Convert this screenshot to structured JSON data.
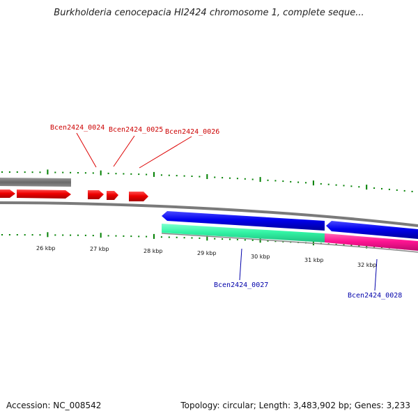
{
  "header": {
    "title": "Burkholderia cenocepacia HI2424 chromosome 1, complete seque..."
  },
  "footer": {
    "accession": "Accession: NC_008542",
    "summary": "Topology: circular; Length: 3,483,902 bp; Genes: 3,233"
  },
  "map": {
    "scale_labels": [
      "26 kbp",
      "27 kbp",
      "28 kbp",
      "29 kbp",
      "30 kbp",
      "31 kbp",
      "32 kbp"
    ],
    "genes": [
      {
        "name": "Bcen2424_0024",
        "strand": "forward",
        "color": "#ff0000"
      },
      {
        "name": "Bcen2424_0025",
        "strand": "forward",
        "color": "#ff0000"
      },
      {
        "name": "Bcen2424_0026",
        "strand": "forward",
        "color": "#ff0000"
      },
      {
        "name": "Bcen2424_0027",
        "strand": "reverse",
        "color": "#0000ff"
      },
      {
        "name": "Bcen2424_0028",
        "strand": "reverse",
        "color": "#0000ff"
      }
    ],
    "colors": {
      "forward_cds": "#ff0000",
      "reverse_cds": "#0000ff",
      "backbone": "#808080",
      "tick": "#008000",
      "gene_label_forward": "#cc0000",
      "gene_label_reverse": "#0000aa",
      "feature_teal": "#33ffaa",
      "feature_pink": "#ff1493"
    }
  }
}
